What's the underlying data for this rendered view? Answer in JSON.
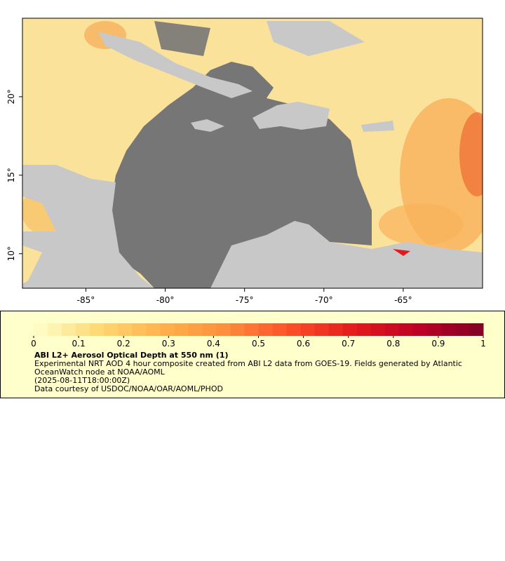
{
  "map": {
    "xlim": [
      -89,
      -60
    ],
    "ylim": [
      7.8,
      25
    ],
    "xticks": [
      {
        "value": -85,
        "label": "-85°"
      },
      {
        "value": -80,
        "label": "-80°"
      },
      {
        "value": -75,
        "label": "-75°"
      },
      {
        "value": -70,
        "label": "-70°"
      },
      {
        "value": -65,
        "label": "-65°"
      }
    ],
    "yticks": [
      {
        "value": 10,
        "label": "10°"
      },
      {
        "value": 15,
        "label": "15°"
      },
      {
        "value": 20,
        "label": "20°"
      }
    ]
  },
  "colorbar": {
    "lim": [
      0,
      1
    ],
    "ticks": [
      0,
      0.1,
      0.2,
      0.3,
      0.4,
      0.5,
      0.6,
      0.7,
      0.8,
      0.9,
      1
    ],
    "colors": [
      "#ffffcc",
      "#fed976",
      "#feb24c",
      "#fd8d3c",
      "#fc4e2a",
      "#e31a1c",
      "#bd0026",
      "#800026"
    ]
  },
  "legend": {
    "title": "ABI L2+ Aerosol Optical Depth at 550 nm (1)",
    "description": "Experimental NRT AOD 4 hour composite created from ABI L2 data from GOES-19. Fields generated by Atlantic OceanWatch node at NOAA/AOML",
    "time": "(2025-08-11T18:00:00Z)",
    "credit": "Data courtesy of USDOC/NOAA/OAR/AOML/PHOD"
  }
}
